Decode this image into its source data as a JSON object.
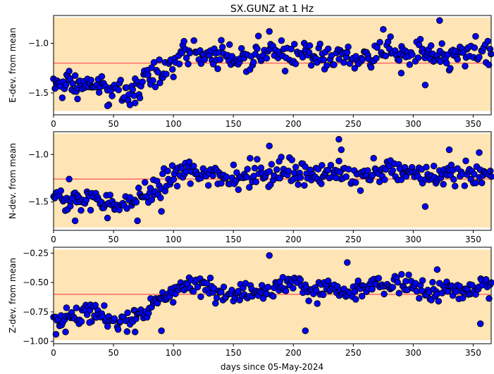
{
  "chart_data": {
    "type": "scatter",
    "title": "SX.GUNZ at 1 Hz",
    "xlabel": "days since 05-May-2024",
    "xlim": [
      0,
      365
    ],
    "x_ticks": [
      0,
      50,
      100,
      150,
      200,
      250,
      300,
      350
    ],
    "colors": {
      "marker_fill": "#0000ff",
      "marker_edge": "#000000",
      "band": "#ffe4b5",
      "mean_line": "#ff6b6b"
    },
    "panels": [
      {
        "name": "E",
        "ylabel": "E-dev. from mean",
        "ylim": [
          -1.72,
          -0.72
        ],
        "y_ticks": [
          -1.5,
          -1.0
        ],
        "y_tick_labels": [
          "−1.5",
          "−1.0"
        ],
        "band": [
          -1.68,
          -0.74
        ],
        "mean": -1.2,
        "start": -1.45,
        "end": -1.12,
        "ramp": [
          65,
          110
        ],
        "spread": 0.09,
        "outliers": [
          [
            13,
            -1.28
          ],
          [
            20,
            -1.56
          ],
          [
            45,
            -1.63
          ],
          [
            68,
            -1.6
          ],
          [
            72,
            -1.55
          ],
          [
            180,
            -0.88
          ],
          [
            275,
            -0.86
          ],
          [
            290,
            -1.3
          ],
          [
            310,
            -1.42
          ],
          [
            322,
            -0.77
          ],
          [
            352,
            -0.93
          ]
        ]
      },
      {
        "name": "N",
        "ylabel": "N-dev. from mean",
        "ylim": [
          -1.8,
          -0.76
        ],
        "y_ticks": [
          -1.5,
          -1.0
        ],
        "y_tick_labels": [
          "−1.5",
          "−1.0"
        ],
        "band": [
          -1.77,
          -0.78
        ],
        "mean": -1.26,
        "start": -1.5,
        "end": -1.2,
        "ramp": [
          60,
          110
        ],
        "spread": 0.09,
        "outliers": [
          [
            13,
            -1.26
          ],
          [
            18,
            -1.7
          ],
          [
            45,
            -1.67
          ],
          [
            70,
            -1.7
          ],
          [
            90,
            -1.6
          ],
          [
            180,
            -0.91
          ],
          [
            238,
            -0.84
          ],
          [
            240,
            -0.95
          ],
          [
            310,
            -1.55
          ],
          [
            330,
            -0.95
          ],
          [
            355,
            -0.98
          ]
        ]
      },
      {
        "name": "Z",
        "ylabel": "Z-dev. from mean",
        "ylim": [
          -1.02,
          -0.2
        ],
        "y_ticks": [
          -1.0,
          -0.75,
          -0.5,
          -0.25
        ],
        "y_tick_labels": [
          "−1.00",
          "−0.75",
          "−0.50",
          "−0.25"
        ],
        "band": [
          -0.99,
          -0.22
        ],
        "mean": -0.6,
        "start": -0.8,
        "end": -0.55,
        "ramp": [
          60,
          110
        ],
        "spread": 0.06,
        "outliers": [
          [
            2,
            -0.94
          ],
          [
            10,
            -0.92
          ],
          [
            30,
            -0.84
          ],
          [
            68,
            -0.92
          ],
          [
            90,
            -0.91
          ],
          [
            180,
            -0.27
          ],
          [
            210,
            -0.91
          ],
          [
            245,
            -0.33
          ],
          [
            320,
            -0.39
          ],
          [
            356,
            -0.85
          ]
        ]
      }
    ]
  }
}
